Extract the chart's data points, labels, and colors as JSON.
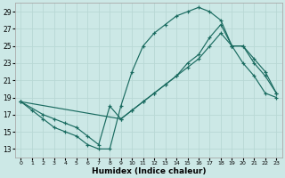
{
  "xlabel": "Humidex (Indice chaleur)",
  "bg_color": "#cce8e6",
  "line_color": "#1a6b60",
  "grid_color": "#b8d8d5",
  "xlim_min": -0.5,
  "xlim_max": 23.5,
  "ylim_min": 12,
  "ylim_max": 30,
  "yticks": [
    13,
    15,
    17,
    19,
    21,
    23,
    25,
    27,
    29
  ],
  "xticks": [
    0,
    1,
    2,
    3,
    4,
    5,
    6,
    7,
    8,
    9,
    10,
    11,
    12,
    13,
    14,
    15,
    16,
    17,
    18,
    19,
    20,
    21,
    22,
    23
  ],
  "line_jagged_x": [
    0,
    1,
    2,
    3,
    4,
    5,
    6,
    7,
    8,
    9,
    10,
    11,
    12,
    13,
    14,
    15,
    16,
    17,
    18,
    19,
    20,
    21,
    22,
    23
  ],
  "line_jagged_y": [
    18.5,
    17.5,
    16.5,
    15.5,
    15.0,
    14.5,
    13.5,
    13.0,
    13.0,
    18.0,
    22.0,
    25.0,
    26.5,
    27.5,
    28.5,
    29.0,
    29.5,
    29.0,
    28.0,
    25.0,
    23.0,
    21.5,
    19.5,
    19.0
  ],
  "line_upper_x": [
    0,
    2,
    3,
    4,
    5,
    6,
    7,
    8,
    9,
    10,
    11,
    12,
    13,
    14,
    15,
    16,
    17,
    18,
    19,
    20,
    21,
    22,
    23
  ],
  "line_upper_y": [
    18.5,
    17.0,
    16.5,
    16.0,
    15.5,
    14.5,
    13.5,
    18.0,
    16.5,
    17.5,
    18.5,
    19.5,
    20.5,
    21.5,
    23.0,
    24.0,
    26.0,
    27.5,
    25.0,
    25.0,
    23.0,
    21.5,
    19.5
  ],
  "line_lower_x": [
    0,
    9,
    10,
    11,
    12,
    13,
    14,
    15,
    16,
    17,
    18,
    19,
    20,
    21,
    22,
    23
  ],
  "line_lower_y": [
    18.5,
    16.5,
    17.5,
    18.5,
    19.5,
    20.5,
    21.5,
    22.5,
    23.5,
    25.0,
    26.5,
    25.0,
    25.0,
    23.5,
    22.0,
    19.5
  ]
}
